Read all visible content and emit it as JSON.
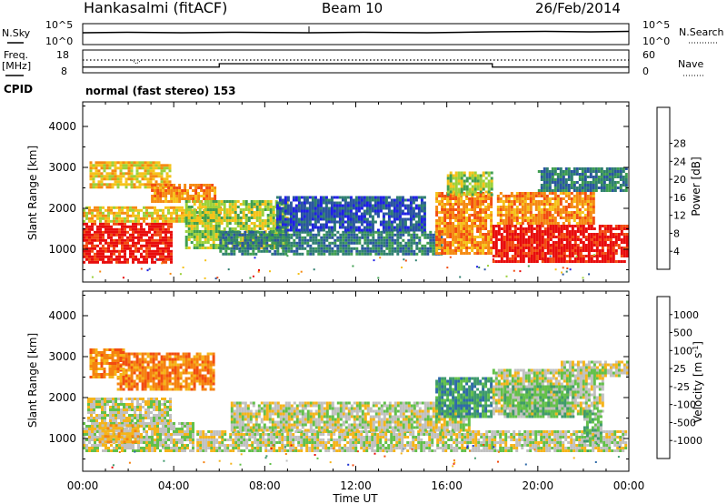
{
  "header": {
    "station": "Hankasalmi (fitACF)",
    "beam": "Beam 10",
    "date": "26/Feb/2014"
  },
  "side_labels": {
    "nsky": "N.Sky",
    "nsearch": "N.Search",
    "freq_line1": "Freq.",
    "freq_line2": "[MHz]",
    "nave": "Nave",
    "cpid": "CPID"
  },
  "cpid_text": "normal (fast stereo) 153",
  "noise_panel": {
    "left_ticks": [
      "10^5",
      "10^0"
    ],
    "right_ticks": [
      "10^5",
      "10^0"
    ]
  },
  "freq_panel": {
    "left_ticks": [
      "18",
      "8"
    ],
    "right_ticks": [
      "60",
      "0"
    ],
    "freq_mhz_by_hour": {
      "hours": [
        0,
        6,
        6,
        18,
        18,
        24
      ],
      "values": [
        10.5,
        10.5,
        12.0,
        12.0,
        10.5,
        10.5
      ]
    },
    "nave_level": 40
  },
  "chart_data": [
    {
      "type": "heatmap",
      "name": "power",
      "ylabel": "Slant Range [km]",
      "yticks": [
        "1000",
        "2000",
        "3000",
        "4000"
      ],
      "ylim": [
        200,
        4600
      ],
      "xlim": [
        0,
        24
      ],
      "colorbar": {
        "label": "Power [dB]",
        "ticks": [
          "4",
          "8",
          "12",
          "16",
          "20",
          "24",
          "28"
        ],
        "colors": [
          "#1f1fe6",
          "#2a55a0",
          "#2f7f70",
          "#3f9e50",
          "#9bd13a",
          "#f5c21a",
          "#f58a12",
          "#f24c10",
          "#e80c0c"
        ]
      },
      "bands": [
        {
          "h0": 0.0,
          "h1": 3.9,
          "r0": 700,
          "r1": 1650,
          "level": 8
        },
        {
          "h0": 0.0,
          "h1": 6.0,
          "r0": 1650,
          "r1": 2050,
          "level": 5
        },
        {
          "h0": 0.3,
          "h1": 3.8,
          "r0": 2500,
          "r1": 3150,
          "level": 5
        },
        {
          "h0": 3.0,
          "h1": 5.8,
          "r0": 2150,
          "r1": 2600,
          "level": 6
        },
        {
          "h0": 4.5,
          "h1": 9.0,
          "r0": 1000,
          "r1": 2200,
          "level": 4
        },
        {
          "h0": 6.0,
          "h1": 15.8,
          "r0": 850,
          "r1": 1450,
          "level": 2
        },
        {
          "h0": 8.5,
          "h1": 15.0,
          "r0": 1450,
          "r1": 2300,
          "level": 1
        },
        {
          "h0": 15.5,
          "h1": 18.0,
          "r0": 900,
          "r1": 2400,
          "level": 6
        },
        {
          "h0": 16.0,
          "h1": 18.0,
          "r0": 2300,
          "r1": 2900,
          "level": 4
        },
        {
          "h0": 18.0,
          "h1": 23.9,
          "r0": 700,
          "r1": 1600,
          "level": 8
        },
        {
          "h0": 18.2,
          "h1": 22.5,
          "r0": 1600,
          "r1": 2400,
          "level": 6
        },
        {
          "h0": 20.0,
          "h1": 23.9,
          "r0": 2400,
          "r1": 3000,
          "level": 2
        }
      ]
    },
    {
      "type": "heatmap",
      "name": "velocity",
      "ylabel": "Slant Range [km]",
      "yticks": [
        "1000",
        "2000",
        "3000",
        "4000"
      ],
      "ylim": [
        200,
        4600
      ],
      "xlim": [
        0,
        24
      ],
      "colorbar": {
        "label": "Velocity [m s^-1]",
        "ticks": [
          "1000",
          "500",
          "100",
          "25",
          "-25",
          "-100",
          "-500",
          "-1000"
        ],
        "colors": [
          "#1e32d2",
          "#2f6aa8",
          "#3e9a6c",
          "#62c04a",
          "#c0c0c0",
          "#f5b41a",
          "#f58210",
          "#f24c10",
          "#e80c0c"
        ]
      },
      "bands": [
        {
          "h0": 0.0,
          "h1": 4.8,
          "r0": 700,
          "r1": 1400,
          "level": 4
        },
        {
          "h0": 0.2,
          "h1": 3.8,
          "r0": 1400,
          "r1": 2000,
          "level": 4
        },
        {
          "h0": 1.5,
          "h1": 5.8,
          "r0": 2200,
          "r1": 3100,
          "level": 6
        },
        {
          "h0": 0.3,
          "h1": 1.8,
          "r0": 2500,
          "r1": 3200,
          "level": 6
        },
        {
          "h0": 0.7,
          "h1": 2.4,
          "r0": 900,
          "r1": 1350,
          "level": 5
        },
        {
          "h0": 5.0,
          "h1": 23.9,
          "r0": 700,
          "r1": 1200,
          "level": 4
        },
        {
          "h0": 6.5,
          "h1": 17.0,
          "r0": 1200,
          "r1": 1900,
          "level": 4
        },
        {
          "h0": 15.5,
          "h1": 18.0,
          "r0": 1500,
          "r1": 2500,
          "level": 2
        },
        {
          "h0": 18.0,
          "h1": 22.8,
          "r0": 1600,
          "r1": 2700,
          "level": 4
        },
        {
          "h0": 18.5,
          "h1": 21.5,
          "r0": 1500,
          "r1": 2300,
          "level": 3
        },
        {
          "h0": 21.0,
          "h1": 23.9,
          "r0": 2500,
          "r1": 2900,
          "level": 4
        },
        {
          "h0": 22.0,
          "h1": 22.8,
          "r0": 900,
          "r1": 1700,
          "level": 3
        }
      ]
    }
  ],
  "time_axis": {
    "ticks": [
      "00:00",
      "04:00",
      "08:00",
      "12:00",
      "16:00",
      "20:00",
      "00:00"
    ],
    "label": "Time UT"
  }
}
